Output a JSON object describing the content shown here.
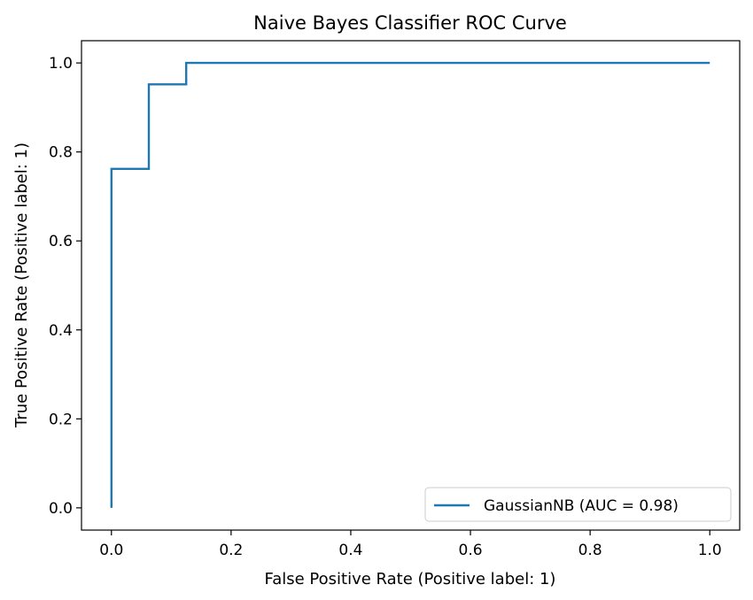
{
  "chart_data": {
    "type": "line",
    "title": "Naive Bayes Classifier ROC Curve",
    "xlabel": "False Positive Rate (Positive label: 1)",
    "ylabel": "True Positive Rate (Positive label: 1)",
    "xlim": [
      -0.05,
      1.05
    ],
    "ylim": [
      -0.05,
      1.05
    ],
    "x_ticks": [
      0.0,
      0.2,
      0.4,
      0.6,
      0.8,
      1.0
    ],
    "y_ticks": [
      0.0,
      0.2,
      0.4,
      0.6,
      0.8,
      1.0
    ],
    "x_tick_labels": [
      "0.0",
      "0.2",
      "0.4",
      "0.6",
      "0.8",
      "1.0"
    ],
    "y_tick_labels": [
      "0.0",
      "0.2",
      "0.4",
      "0.6",
      "0.8",
      "1.0"
    ],
    "grid": false,
    "legend_position": "bottom-right",
    "series": [
      {
        "name": "GaussianNB (AUC = 0.98)",
        "color": "#1f77b4",
        "x": [
          0.0,
          0.0,
          0.0625,
          0.0625,
          0.125,
          0.125,
          1.0
        ],
        "y": [
          0.0,
          0.762,
          0.762,
          0.952,
          0.952,
          1.0,
          1.0
        ]
      }
    ]
  }
}
